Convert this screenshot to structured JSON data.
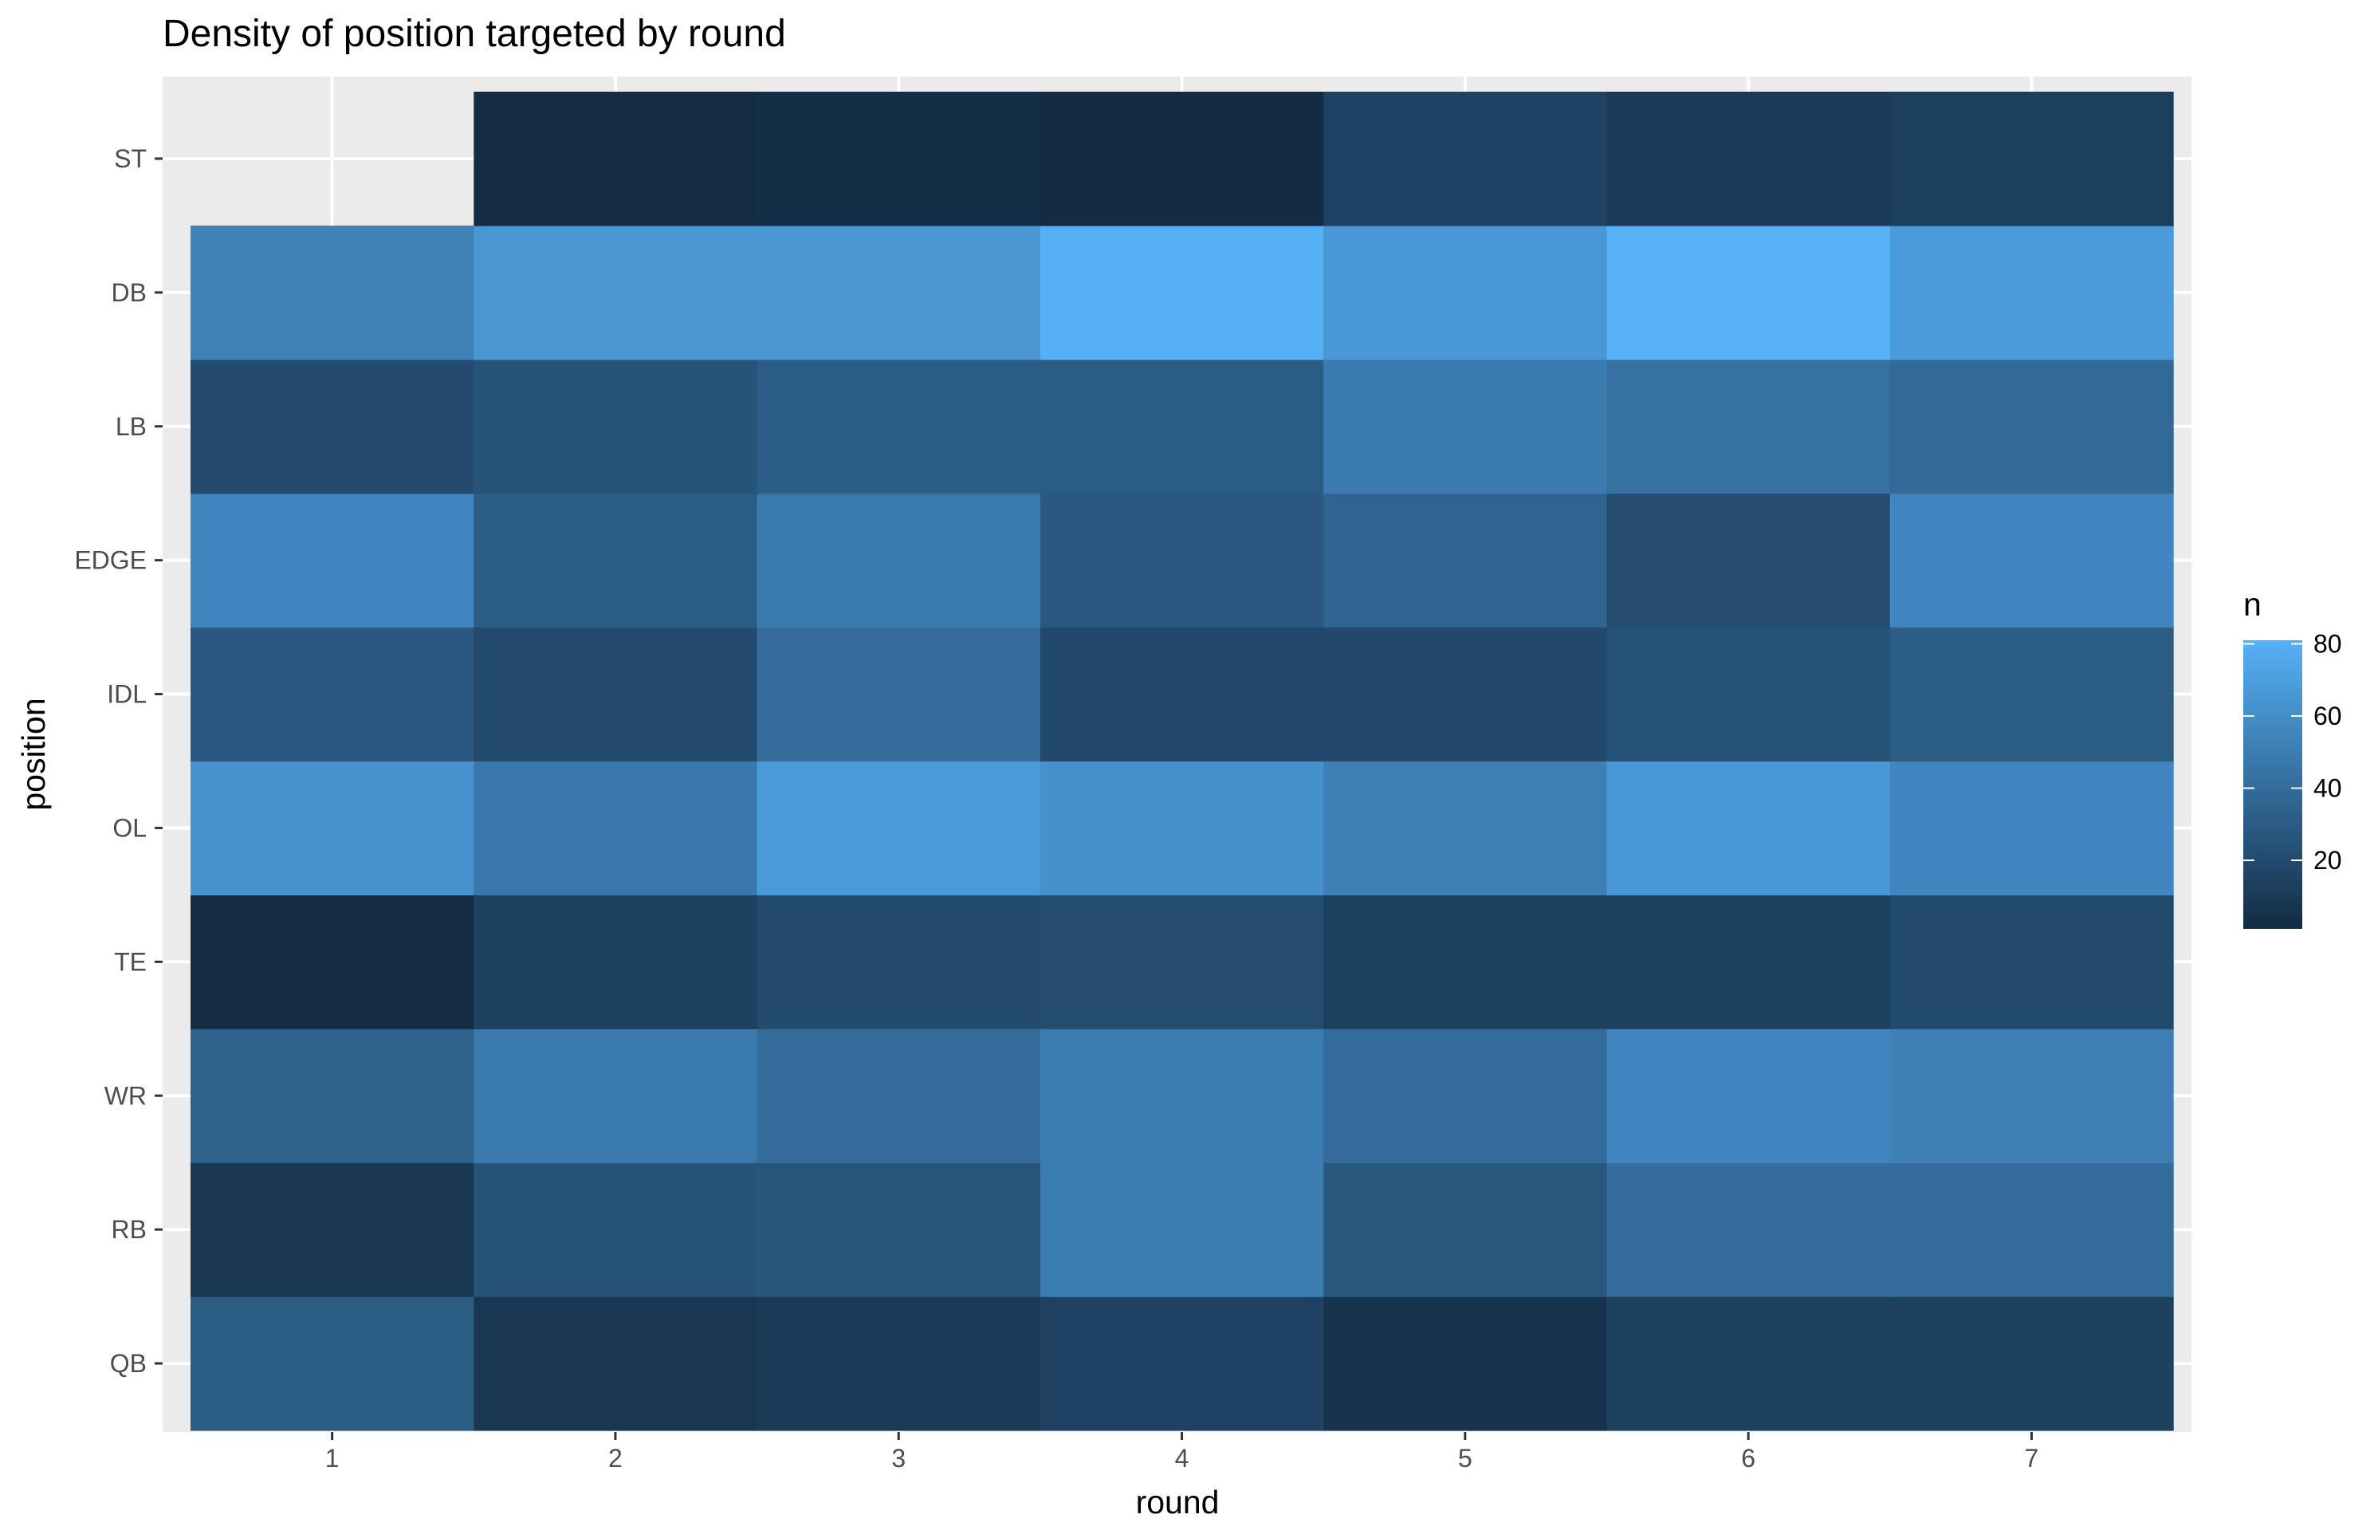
{
  "chart_data": {
    "type": "heatmap",
    "title": "Density of position targeted by round",
    "xlabel": "round",
    "ylabel": "position",
    "x_categories": [
      "1",
      "2",
      "3",
      "4",
      "5",
      "6",
      "7"
    ],
    "y_categories": [
      "QB",
      "RB",
      "WR",
      "TE",
      "OL",
      "IDL",
      "EDGE",
      "LB",
      "DB",
      "ST"
    ],
    "values": [
      [
        30,
        8,
        10,
        15,
        6,
        14,
        14
      ],
      [
        8,
        25,
        26,
        50,
        27,
        40,
        40
      ],
      [
        33,
        48,
        40,
        50,
        40,
        55,
        52
      ],
      [
        2,
        14,
        20,
        21,
        14,
        14,
        20
      ],
      [
        63,
        47,
        67,
        62,
        52,
        66,
        55
      ],
      [
        28,
        20,
        40,
        19,
        19,
        24,
        30
      ],
      [
        55,
        30,
        48,
        28,
        35,
        21,
        55
      ],
      [
        20,
        25,
        31,
        30,
        49,
        43,
        38
      ],
      [
        53,
        65,
        65,
        80,
        66,
        81,
        68
      ],
      [
        null,
        2,
        3,
        1,
        15,
        10,
        13
      ]
    ],
    "legend": {
      "title": "n",
      "ticks": [
        20,
        40,
        60,
        80
      ],
      "min": 1,
      "max": 81,
      "low_color": "#132b43",
      "high_color": "#56b1f7",
      "position": "right"
    },
    "grid": true,
    "panel_background": "#ebebeb",
    "gridline_color": "#ffffff"
  }
}
